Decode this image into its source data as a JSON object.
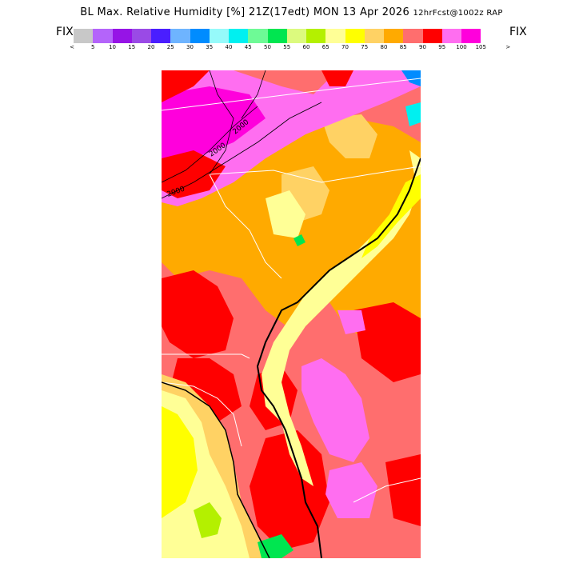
{
  "header": {
    "title": "BL Max. Relative Humidity [%] 21Z(17edt) MON 13 Apr 2026",
    "subtitle": "12hrFcst@1002z RAP"
  },
  "legend": {
    "fix_left": "FIX",
    "fix_right": "FIX",
    "under_label": "<",
    "over_label": ">",
    "colors": [
      "#c8c8c8",
      "#b464fa",
      "#9614e6",
      "#9a4ae6",
      "#4a1eff",
      "#6eb4ff",
      "#008cff",
      "#96fafa",
      "#00f0f0",
      "#6efa96",
      "#00e650",
      "#dcfa7e",
      "#b4f000",
      "#ffff96",
      "#ffff00",
      "#ffd264",
      "#ffaa00",
      "#ff6e6e",
      "#ff0000",
      "#ff6ef0",
      "#ff00dc"
    ],
    "ticks": [
      "5",
      "10",
      "15",
      "20",
      "25",
      "30",
      "35",
      "40",
      "45",
      "50",
      "55",
      "60",
      "65",
      "70",
      "75",
      "80",
      "85",
      "90",
      "95",
      "100",
      "105"
    ]
  },
  "map": {
    "contour_labels": [
      "2000",
      "2000",
      "2000"
    ]
  }
}
